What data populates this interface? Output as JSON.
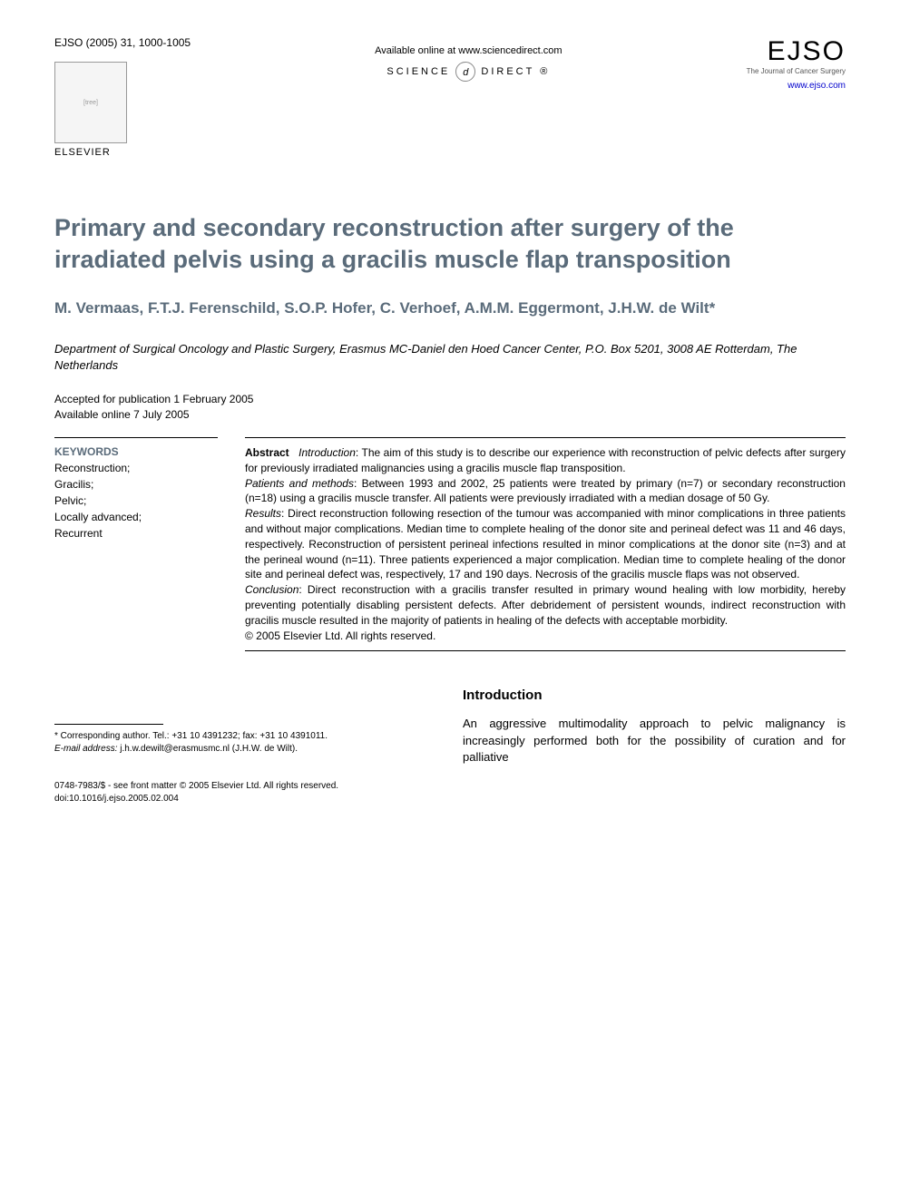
{
  "header": {
    "citation": "EJSO (2005) 31, 1000-1005",
    "elsevier_label": "ELSEVIER",
    "available_text": "Available online at www.sciencedirect.com",
    "science_direct": "SCIENCE",
    "science_direct2": "DIRECT",
    "sd_glyph": "d",
    "journal_logo": "EJSO",
    "journal_sub": "The Journal of Cancer Surgery",
    "journal_url": "www.ejso.com"
  },
  "article": {
    "title": "Primary and secondary reconstruction after surgery of the irradiated pelvis using a gracilis muscle flap transposition",
    "authors": "M. Vermaas, F.T.J. Ferenschild, S.O.P. Hofer, C. Verhoef, A.M.M. Eggermont, J.H.W. de Wilt*",
    "affiliation": "Department of Surgical Oncology and Plastic Surgery, Erasmus MC-Daniel den Hoed Cancer Center, P.O. Box 5201, 3008 AE Rotterdam, The Netherlands",
    "accepted": "Accepted for publication 1 February 2005",
    "online": "Available online 7 July 2005"
  },
  "keywords": {
    "heading": "KEYWORDS",
    "items": [
      "Reconstruction;",
      "Gracilis;",
      "Pelvic;",
      "Locally advanced;",
      "Recurrent"
    ]
  },
  "abstract": {
    "label": "Abstract",
    "intro_label": "Introduction",
    "intro_text": ": The aim of this study is to describe our experience with reconstruction of pelvic defects after surgery for previously irradiated malignancies using a gracilis muscle flap transposition.",
    "methods_label": "Patients and methods",
    "methods_text": ": Between 1993 and 2002, 25 patients were treated by primary (n=7) or secondary reconstruction (n=18) using a gracilis muscle transfer. All patients were previously irradiated with a median dosage of 50 Gy.",
    "results_label": "Results",
    "results_text": ": Direct reconstruction following resection of the tumour was accompanied with minor complications in three patients and without major complications. Median time to complete healing of the donor site and perineal defect was 11 and 46 days, respectively. Reconstruction of persistent perineal infections resulted in minor complications at the donor site (n=3) and at the perineal wound (n=11). Three patients experienced a major complication. Median time to complete healing of the donor site and perineal defect was, respectively, 17 and 190 days. Necrosis of the gracilis muscle flaps was not observed.",
    "conclusion_label": "Conclusion",
    "conclusion_text": ": Direct reconstruction with a gracilis transfer resulted in primary wound healing with low morbidity, hereby preventing potentially disabling persistent defects. After debridement of persistent wounds, indirect reconstruction with gracilis muscle resulted in the majority of patients in healing of the defects with acceptable morbidity.",
    "copyright": "© 2005 Elsevier Ltd. All rights reserved."
  },
  "introduction": {
    "heading": "Introduction",
    "text": "An aggressive multimodality approach to pelvic malignancy is increasingly performed both for the possibility of curation and for palliative"
  },
  "footnote": {
    "corresponding": "* Corresponding author. Tel.: +31 10 4391232; fax: +31 10 4391011.",
    "email_label": "E-mail address:",
    "email": "j.h.w.dewilt@erasmusmc.nl (J.H.W. de Wilt)."
  },
  "bottom": {
    "issn": "0748-7983/$ - see front matter © 2005 Elsevier Ltd. All rights reserved.",
    "doi": "doi:10.1016/j.ejso.2005.02.004"
  },
  "colors": {
    "heading_color": "#5a6b7a",
    "text_color": "#000000",
    "link_color": "#0000cc",
    "background": "#ffffff"
  },
  "typography": {
    "title_fontsize": 27,
    "authors_fontsize": 17,
    "body_fontsize": 12,
    "footnote_fontsize": 10
  }
}
